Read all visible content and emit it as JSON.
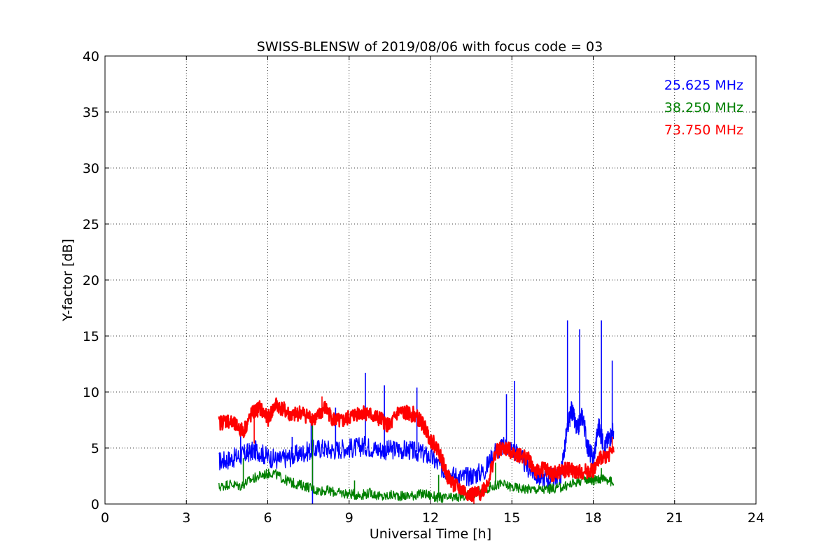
{
  "chart_data": {
    "type": "line",
    "title": "SWISS-BLENSW of 2019/08/06 with focus code = 03",
    "xlabel": "Universal Time [h]",
    "ylabel": "Y-factor [dB]",
    "xlim": [
      0,
      24
    ],
    "ylim": [
      0,
      40
    ],
    "xticks": [
      0,
      3,
      6,
      9,
      12,
      15,
      18,
      21,
      24
    ],
    "yticks": [
      0,
      5,
      10,
      15,
      20,
      25,
      30,
      35,
      40
    ],
    "xtick_labels": [
      "0",
      "3",
      "6",
      "9",
      "12",
      "15",
      "18",
      "21",
      "24"
    ],
    "ytick_labels": [
      "0",
      "5",
      "10",
      "15",
      "20",
      "25",
      "30",
      "35",
      "40"
    ],
    "grid": true,
    "legend_position": "top-right",
    "series": [
      {
        "name": "25.625 MHz",
        "color": "#0000ff",
        "x": [
          4.2,
          4.6,
          5.0,
          5.3,
          5.6,
          6.0,
          6.4,
          6.8,
          7.2,
          7.6,
          8.0,
          8.4,
          8.8,
          9.2,
          9.6,
          10.0,
          10.4,
          10.8,
          11.2,
          11.6,
          12.0,
          12.4,
          12.8,
          13.2,
          13.6,
          14.0,
          14.4,
          14.8,
          15.2,
          15.6,
          16.0,
          16.4,
          16.8,
          17.0,
          17.2,
          17.4,
          17.6,
          17.8,
          18.0,
          18.2,
          18.4,
          18.6,
          18.75
        ],
        "y": [
          3.8,
          4.0,
          4.3,
          4.6,
          4.8,
          4.2,
          3.9,
          4.2,
          4.5,
          4.8,
          5.0,
          4.8,
          5.0,
          5.0,
          5.2,
          4.9,
          4.8,
          4.9,
          4.8,
          4.6,
          4.2,
          3.2,
          2.6,
          2.4,
          2.6,
          3.0,
          4.8,
          5.2,
          4.6,
          3.2,
          2.4,
          2.3,
          2.5,
          6.0,
          8.5,
          6.5,
          8.0,
          5.0,
          4.0,
          7.0,
          5.0,
          6.0,
          6.5
        ],
        "spikes": [
          [
            5.0,
            6.2
          ],
          [
            6.9,
            6.0
          ],
          [
            7.6,
            7.8
          ],
          [
            7.65,
            0.0
          ],
          [
            8.5,
            8.6
          ],
          [
            9.6,
            11.7
          ],
          [
            10.3,
            10.6
          ],
          [
            11.5,
            10.4
          ],
          [
            14.8,
            9.8
          ],
          [
            15.1,
            11.0
          ],
          [
            17.05,
            16.4
          ],
          [
            17.5,
            15.6
          ],
          [
            18.3,
            16.4
          ],
          [
            18.7,
            12.8
          ]
        ]
      },
      {
        "name": "38.250 MHz",
        "color": "#008000",
        "x": [
          4.2,
          4.6,
          5.0,
          5.4,
          5.8,
          6.2,
          6.6,
          7.0,
          7.4,
          7.8,
          8.2,
          8.6,
          9.0,
          9.4,
          9.8,
          10.2,
          10.6,
          11.0,
          11.4,
          11.8,
          12.2,
          12.6,
          13.0,
          13.4,
          13.8,
          14.2,
          14.6,
          15.0,
          15.4,
          15.8,
          16.2,
          16.6,
          17.0,
          17.4,
          17.8,
          18.0,
          18.2,
          18.4,
          18.75
        ],
        "y": [
          1.5,
          1.8,
          1.6,
          2.2,
          2.6,
          2.8,
          2.2,
          1.8,
          1.6,
          1.2,
          1.2,
          1.0,
          0.9,
          0.8,
          1.0,
          0.6,
          0.8,
          0.7,
          0.8,
          0.9,
          0.6,
          0.5,
          0.6,
          0.8,
          1.2,
          1.5,
          1.8,
          1.5,
          1.4,
          1.3,
          1.3,
          1.4,
          1.6,
          2.0,
          2.3,
          2.1,
          2.2,
          2.4,
          1.8
        ],
        "spikes": [
          [
            5.1,
            4.1
          ],
          [
            7.65,
            7.6
          ],
          [
            9.2,
            2.1
          ],
          [
            12.3,
            2.6
          ],
          [
            14.4,
            3.7
          ],
          [
            18.3,
            3.2
          ]
        ]
      },
      {
        "name": "73.750 MHz",
        "color": "#ff0000",
        "x": [
          4.2,
          4.5,
          4.8,
          5.1,
          5.4,
          5.7,
          6.0,
          6.3,
          6.6,
          6.9,
          7.2,
          7.5,
          7.8,
          8.1,
          8.4,
          8.7,
          9.0,
          9.3,
          9.6,
          9.9,
          10.2,
          10.5,
          10.8,
          11.1,
          11.4,
          11.7,
          12.0,
          12.3,
          12.6,
          12.9,
          13.2,
          13.5,
          13.8,
          14.1,
          14.4,
          14.7,
          15.0,
          15.3,
          15.6,
          15.9,
          16.2,
          16.5,
          16.8,
          17.1,
          17.4,
          17.7,
          18.0,
          18.3,
          18.75
        ],
        "y": [
          7.2,
          7.5,
          7.0,
          6.5,
          8.0,
          8.6,
          7.6,
          8.9,
          8.4,
          7.8,
          8.2,
          7.8,
          7.6,
          8.6,
          7.6,
          7.3,
          7.7,
          8.1,
          8.2,
          7.8,
          7.5,
          6.9,
          8.2,
          8.1,
          8.0,
          7.2,
          5.8,
          4.8,
          2.6,
          1.6,
          1.2,
          0.8,
          0.9,
          1.8,
          4.6,
          5.0,
          4.7,
          4.3,
          4.1,
          2.8,
          3.2,
          2.6,
          2.9,
          3.1,
          2.8,
          2.9,
          3.0,
          4.2,
          4.6
        ],
        "spikes": [
          [
            5.5,
            5.4
          ],
          [
            8.0,
            9.6
          ],
          [
            13.6,
            0.0
          ],
          [
            18.7,
            6.0
          ]
        ]
      }
    ]
  }
}
